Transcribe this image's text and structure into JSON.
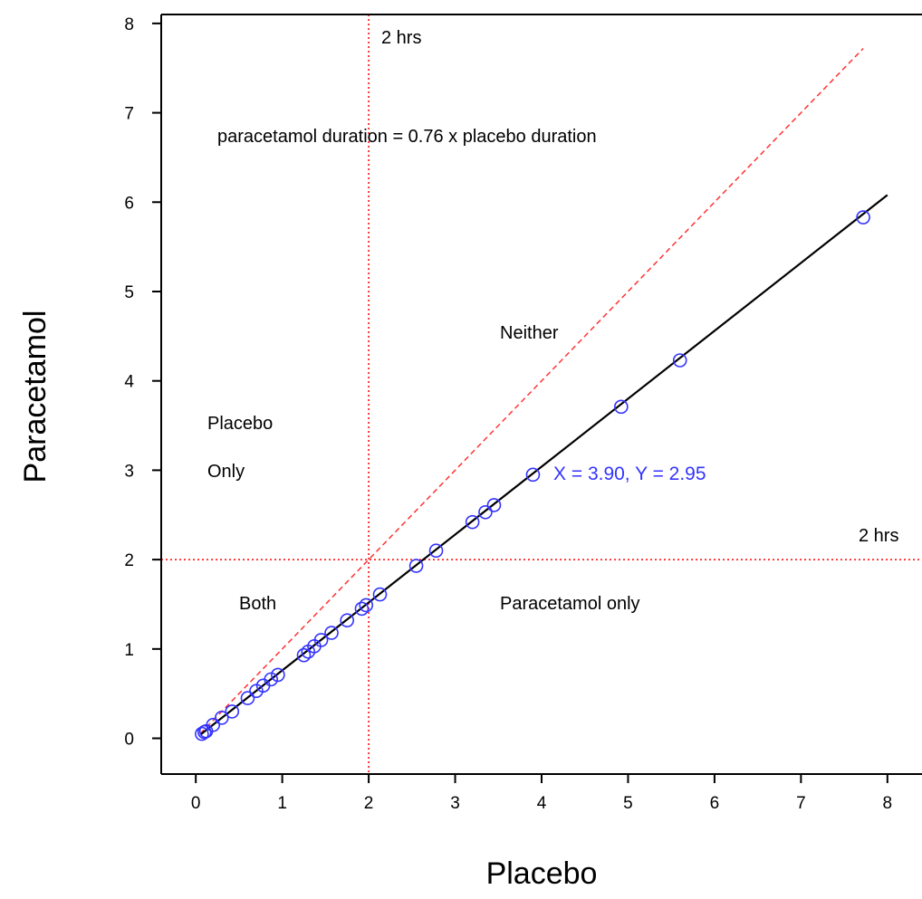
{
  "chart_data": {
    "type": "scatter",
    "xlabel": "Placebo",
    "ylabel": "Paracetamol",
    "xlim": [
      -0.4,
      8.4
    ],
    "ylim": [
      -0.4,
      8.1
    ],
    "x_ticks": [
      "0",
      "1",
      "2",
      "3",
      "4",
      "5",
      "6",
      "7",
      "8"
    ],
    "y_ticks": [
      "0",
      "1",
      "2",
      "3",
      "4",
      "5",
      "6",
      "7",
      "8"
    ],
    "grid": false,
    "points": [
      {
        "x": 0.07,
        "y": 0.05
      },
      {
        "x": 0.1,
        "y": 0.07
      },
      {
        "x": 0.12,
        "y": 0.08
      },
      {
        "x": 0.2,
        "y": 0.15
      },
      {
        "x": 0.3,
        "y": 0.23
      },
      {
        "x": 0.42,
        "y": 0.3
      },
      {
        "x": 0.6,
        "y": 0.45
      },
      {
        "x": 0.7,
        "y": 0.53
      },
      {
        "x": 0.78,
        "y": 0.59
      },
      {
        "x": 0.87,
        "y": 0.66
      },
      {
        "x": 0.95,
        "y": 0.71
      },
      {
        "x": 1.25,
        "y": 0.93
      },
      {
        "x": 1.3,
        "y": 0.97
      },
      {
        "x": 1.37,
        "y": 1.03
      },
      {
        "x": 1.45,
        "y": 1.1
      },
      {
        "x": 1.57,
        "y": 1.18
      },
      {
        "x": 1.75,
        "y": 1.32
      },
      {
        "x": 1.92,
        "y": 1.45
      },
      {
        "x": 1.97,
        "y": 1.49
      },
      {
        "x": 2.13,
        "y": 1.61
      },
      {
        "x": 2.55,
        "y": 1.93
      },
      {
        "x": 2.78,
        "y": 2.1
      },
      {
        "x": 3.2,
        "y": 2.42
      },
      {
        "x": 3.35,
        "y": 2.53
      },
      {
        "x": 3.45,
        "y": 2.61
      },
      {
        "x": 3.9,
        "y": 2.95
      },
      {
        "x": 4.92,
        "y": 3.71
      },
      {
        "x": 5.6,
        "y": 4.23
      },
      {
        "x": 7.72,
        "y": 5.83
      }
    ],
    "fit_line": {
      "slope": 0.76,
      "x_range": [
        0.05,
        8.0
      ],
      "color": "#000000"
    },
    "identity_line": {
      "slope": 1.0,
      "x_range": [
        0.05,
        7.72
      ],
      "color": "#ff3333",
      "style": "dashed"
    },
    "threshold_lines": {
      "x": 2,
      "y": 2,
      "color": "#ff0000",
      "style": "dotted"
    },
    "marker_color": "#3333ff",
    "annotations": {
      "vertical_threshold": "2 hrs",
      "horizontal_threshold": "2 hrs",
      "equation": "paracetamol duration = 0.76 x placebo duration",
      "neither": "Neither",
      "placebo_only_line1": "Placebo",
      "placebo_only_line2": "Only",
      "both": "Both",
      "paracetamol_only": "Paracetamol only",
      "highlight": "X = 3.90, Y = 2.95"
    },
    "highlight_color": "#3333ff"
  }
}
